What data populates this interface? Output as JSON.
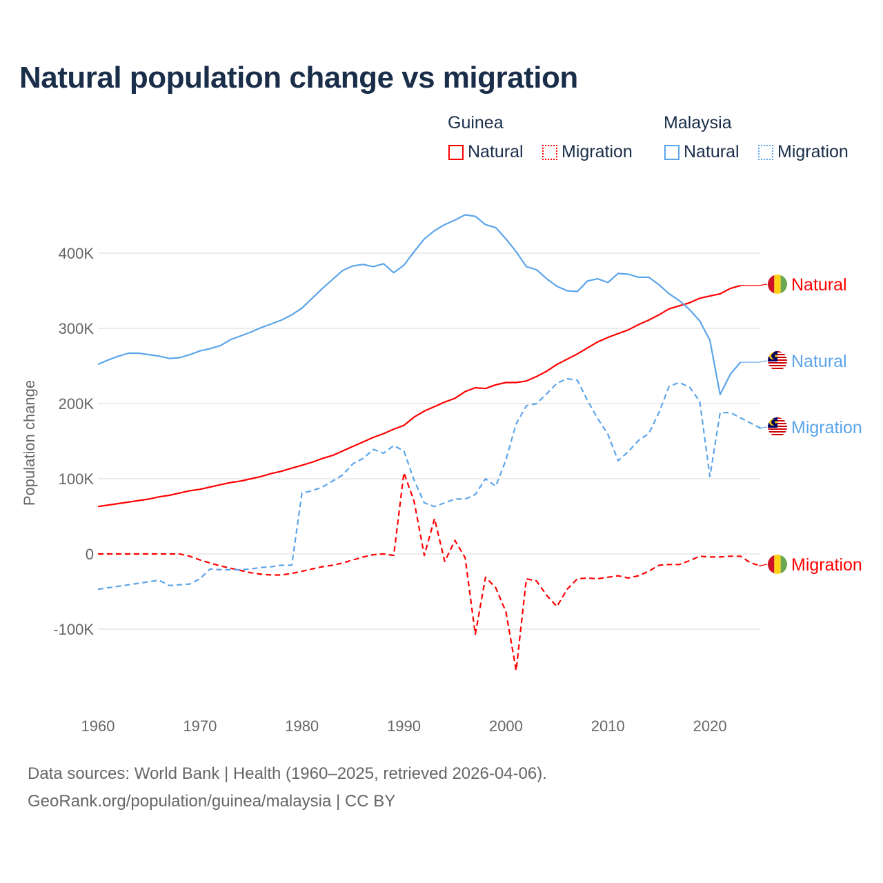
{
  "title": "Natural population change vs migration",
  "legend": {
    "groups": [
      {
        "name": "Guinea",
        "color": "#ff0000",
        "items": [
          "Natural",
          "Migration"
        ]
      },
      {
        "name": "Malaysia",
        "color": "#5ba4ea",
        "items": [
          "Natural",
          "Migration"
        ]
      }
    ]
  },
  "footer": {
    "line1": "Data sources: World Bank | Health (1960–2025, retrieved 2026-04-06).",
    "line2": "GeoRank.org/population/guinea/malaysia | CC BY"
  },
  "chart_data": {
    "type": "line",
    "title": "Natural population change vs migration",
    "xlabel": "",
    "ylabel": "Population change",
    "xlim": [
      1960,
      2025
    ],
    "ylim": [
      -170000,
      470000
    ],
    "x_ticks": [
      1960,
      1970,
      1980,
      1990,
      2000,
      2010,
      2020
    ],
    "x_tick_labels": [
      "1960",
      "1970",
      "1980",
      "1990",
      "2000",
      "2010",
      "2020"
    ],
    "y_ticks": [
      -100000,
      0,
      100000,
      200000,
      300000,
      400000
    ],
    "y_tick_labels": [
      "-100K",
      "0",
      "100K",
      "200K",
      "300K",
      "400K"
    ],
    "grid": true,
    "legend_position": "top-right",
    "series": [
      {
        "name": "Guinea Natural",
        "country": "Guinea",
        "label": "Natural",
        "color": "#ff0000",
        "dash": false,
        "flag": "guinea-flag-icon",
        "start": 1960,
        "values": [
          63,
          65,
          67,
          69,
          71,
          73,
          76,
          78,
          81,
          84,
          86,
          89,
          92,
          95,
          97,
          100,
          103,
          107,
          110,
          114,
          118,
          122,
          127,
          131,
          137,
          143,
          149,
          155,
          160,
          166,
          171,
          182,
          190,
          196,
          202,
          207,
          216,
          221,
          220,
          225,
          228,
          228,
          230,
          236,
          243,
          252,
          259,
          266,
          274,
          282,
          288,
          293,
          298,
          305,
          311,
          318,
          326,
          330,
          334,
          340,
          343,
          346,
          353,
          357
        ]
      },
      {
        "name": "Guinea Migration",
        "country": "Guinea",
        "label": "Migration",
        "color": "#ff0000",
        "dash": true,
        "flag": "guinea-flag-icon",
        "start": 1960,
        "values": [
          0,
          0,
          0,
          0,
          0,
          0,
          0,
          0,
          0,
          -3,
          -8,
          -12,
          -16,
          -19,
          -22,
          -25,
          -27,
          -28,
          -28,
          -26,
          -23,
          -20,
          -17,
          -15,
          -12,
          -8,
          -4,
          -1,
          0,
          -2,
          108,
          70,
          -2,
          47,
          -10,
          18,
          -5,
          -107,
          -31,
          -45,
          -77,
          -155,
          -33,
          -36,
          -55,
          -70,
          -47,
          -33,
          -32,
          -33,
          -31,
          -29,
          -32,
          -29,
          -23,
          -15,
          -14,
          -14,
          -9,
          -3,
          -4,
          -4,
          -3,
          -3,
          -12,
          -16
        ]
      },
      {
        "name": "Malaysia Natural",
        "country": "Malaysia",
        "label": "Natural",
        "color": "#5ba4ea",
        "dash": false,
        "flag": "malaysia-flag-icon",
        "start": 1960,
        "values": [
          252,
          258,
          263,
          267,
          267,
          265,
          263,
          260,
          261,
          265,
          270,
          273,
          277,
          285,
          290,
          295,
          301,
          306,
          311,
          318,
          327,
          340,
          353,
          365,
          377,
          383,
          385,
          382,
          386,
          374,
          384,
          402,
          419,
          430,
          438,
          444,
          451,
          449,
          438,
          434,
          419,
          402,
          382,
          378,
          366,
          356,
          350,
          349,
          363,
          366,
          361,
          373,
          372,
          368,
          368,
          358,
          346,
          337,
          325,
          310,
          284,
          212,
          239,
          255
        ]
      },
      {
        "name": "Malaysia Migration",
        "country": "Malaysia",
        "label": "Migration",
        "color": "#5ba4ea",
        "dash": true,
        "flag": "malaysia-flag-icon",
        "start": 1960,
        "values": [
          -47,
          -45,
          -43,
          -41,
          -39,
          -37,
          -35,
          -42,
          -41,
          -40,
          -33,
          -20,
          -21,
          -21,
          -21,
          -20,
          -18,
          -17,
          -15,
          -15,
          81,
          84,
          89,
          97,
          105,
          120,
          127,
          139,
          134,
          144,
          137,
          98,
          68,
          63,
          68,
          73,
          73,
          79,
          100,
          90,
          125,
          173,
          197,
          200,
          213,
          227,
          233,
          231,
          204,
          180,
          159,
          124,
          136,
          151,
          160,
          188,
          223,
          228,
          222,
          203,
          103,
          188,
          188,
          181,
          174,
          167
        ]
      }
    ],
    "value_unit": "thousands"
  }
}
